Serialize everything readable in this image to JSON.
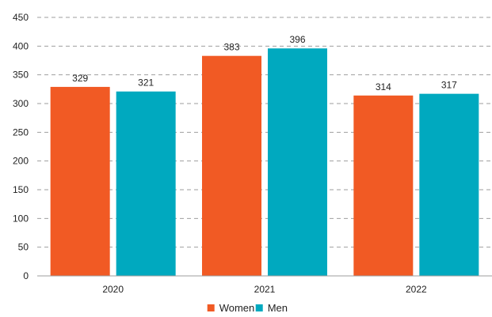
{
  "chart_data": {
    "type": "bar",
    "categories": [
      "2020",
      "2021",
      "2022"
    ],
    "series": [
      {
        "name": "Women",
        "values": [
          329,
          383,
          314
        ],
        "color": "#f15a24"
      },
      {
        "name": "Men",
        "values": [
          321,
          396,
          317
        ],
        "color": "#00a9bf"
      }
    ],
    "ylim": [
      0,
      450
    ],
    "yticks": [
      0,
      50,
      100,
      150,
      200,
      250,
      300,
      350,
      400,
      450
    ],
    "grid": true,
    "grid_style": "dashed",
    "legend_position": "bottom-center",
    "data_labels": true
  }
}
